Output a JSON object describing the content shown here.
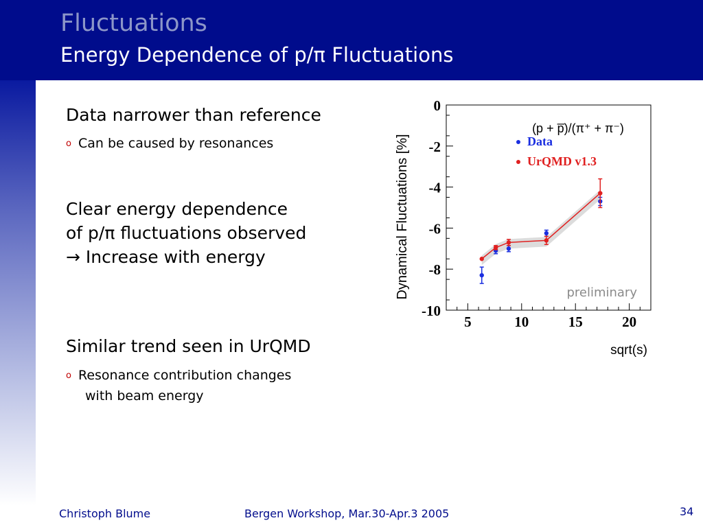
{
  "slide": {
    "title": "Fluctuations",
    "subtitle": "Energy Dependence of p/π Fluctuations",
    "colors": {
      "header": "#000c8c",
      "title": "#8c96c8",
      "footer": "#000c8c"
    }
  },
  "content": {
    "section1": {
      "heading": "Data narrower than reference",
      "bullet": "Can be caused by resonances"
    },
    "section2": {
      "line1": "Clear energy dependence",
      "line2": "of p/π fluctuations observed",
      "line3": "→ Increase with energy"
    },
    "section3": {
      "heading": "Similar trend seen in UrQMD",
      "bullet_line1": "Resonance contribution changes",
      "bullet_line2": "with beam energy"
    }
  },
  "chart_data": {
    "type": "line",
    "ylabel": "Dynamical Fluctuations [%]",
    "xlabel": "sqrt(s)",
    "xlim": [
      3,
      22
    ],
    "ylim": [
      -10,
      0
    ],
    "xticks": [
      5,
      10,
      15,
      20
    ],
    "yticks": [
      0,
      -2,
      -4,
      -6,
      -8,
      -10
    ],
    "legend_title": "(p + p̅)/(π⁺ + π⁻)",
    "legend_placement": "top-right",
    "annotation": "preliminary",
    "series": [
      {
        "name": "Data",
        "color": "#1a2ee0",
        "x": [
          6.3,
          7.6,
          8.8,
          12.3,
          17.3
        ],
        "y": [
          -8.3,
          -7.1,
          -7.0,
          -6.25,
          -4.7
        ],
        "yerr": [
          0.4,
          0.15,
          0.15,
          0.15,
          0.2
        ]
      },
      {
        "name": "UrQMD v1.3",
        "color": "#e02020",
        "x": [
          6.3,
          7.6,
          8.8,
          12.3,
          17.3
        ],
        "y": [
          -7.5,
          -6.95,
          -6.7,
          -6.6,
          -4.3
        ],
        "yerr": [
          0.0,
          0.1,
          0.15,
          0.2,
          0.7
        ]
      }
    ]
  },
  "footer": {
    "author": "Christoph Blume",
    "event": "Bergen Workshop, Mar.30-Apr.3 2005",
    "page": "34"
  }
}
